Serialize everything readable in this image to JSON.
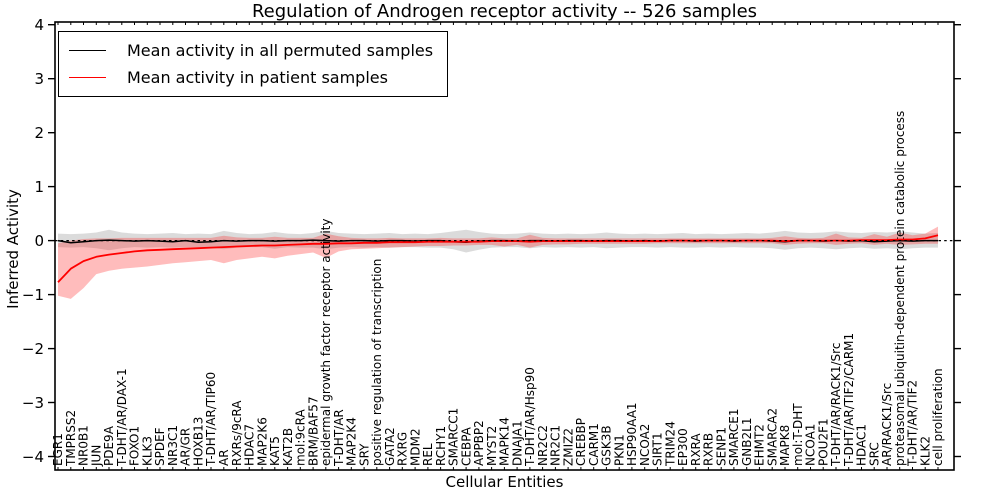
{
  "chart_data": {
    "type": "line",
    "title": "Regulation of Androgen receptor activity -- 526 samples",
    "xlabel": "Cellular Entities",
    "ylabel": "Inferred Activity",
    "ylim": [
      -4,
      4
    ],
    "yticks": [
      -4,
      -3,
      -2,
      -1,
      0,
      1,
      2,
      3,
      4
    ],
    "grid": false,
    "legend_position": "upper left",
    "legend": [
      {
        "label": "Mean activity in all permuted samples",
        "color": "#000000"
      },
      {
        "label": "Mean activity in patient samples",
        "color": "#ff0000"
      }
    ],
    "zero_line": 0,
    "categories": [
      "EGR1",
      "TMPRSS2",
      "NR0B1",
      "JUN",
      "PDE9A",
      "T-DHT/AR/DAX-1",
      "FOXO1",
      "KLK3",
      "SPDEF",
      "NR3C1",
      "AR/GR",
      "HOXB13",
      "T-DHT/AR/TIP60",
      "AR",
      "RXRs/9cRA",
      "HDAC7",
      "MAP2K6",
      "KAT5",
      "KAT2B",
      "mol:9cRA",
      "BRM/BAF57",
      "epidermal growth factor receptor activity",
      "T-DHT/AR",
      "MAP2K4",
      "SRY",
      "positive regulation of transcription",
      "GATA2",
      "RXRG",
      "MDM2",
      "REL",
      "RCHY1",
      "SMARCC1",
      "CEBPA",
      "APPBP2",
      "MYST2",
      "MAPK14",
      "DNAJA1",
      "T-DHT/AR/Hsp90",
      "NR2C2",
      "NR2C1",
      "ZMIZ2",
      "CREBBP",
      "CARM1",
      "GSK3B",
      "PKN1",
      "HSP90AA1",
      "NCOA2",
      "SIRT1",
      "TRIM24",
      "EP300",
      "RXRA",
      "RXRB",
      "SENP1",
      "SMARCE1",
      "GNB2L1",
      "EHMT2",
      "SMARCA2",
      "MAPK8",
      "mol:T-DHT",
      "NCOA1",
      "POU2F1",
      "T-DHT/AR/RACK1/Src",
      "T-DHT/AR/TIF2/CARM1",
      "HDAC1",
      "SRC",
      "AR/RACK1/Src",
      "proteasomal ubiquitin-dependent protein catabolic process",
      "T-DHT/AR/TIF2",
      "KLK2",
      "cell proliferation"
    ],
    "series": [
      {
        "name": "Mean activity in all permuted samples",
        "color": "#000000",
        "values": [
          0.0,
          -0.04,
          -0.02,
          0.0,
          0.01,
          0.0,
          -0.01,
          0.0,
          -0.01,
          -0.02,
          0.0,
          -0.03,
          -0.02,
          0.0,
          -0.01,
          0.0,
          0.0,
          -0.01,
          0.0,
          0.0,
          0.01,
          0.0,
          -0.01,
          0.0,
          0.0,
          -0.01,
          0.0,
          0.0,
          -0.01,
          0.0,
          0.0,
          -0.02,
          -0.03,
          -0.01,
          0.0,
          0.0,
          -0.01,
          0.0,
          0.0,
          -0.01,
          0.0,
          0.0,
          -0.01,
          0.0,
          0.0,
          -0.01,
          0.0,
          -0.01,
          0.0,
          0.0,
          -0.01,
          0.0,
          0.0,
          -0.01,
          0.0,
          0.0,
          -0.01,
          -0.02,
          0.0,
          0.0,
          -0.01,
          0.0,
          -0.01,
          0.0,
          -0.02,
          -0.01,
          0.0,
          -0.01,
          0.0,
          0.0
        ]
      },
      {
        "name": "Mean activity in patient samples",
        "color": "#ff0000",
        "values": [
          -0.77,
          -0.52,
          -0.38,
          -0.3,
          -0.26,
          -0.23,
          -0.2,
          -0.18,
          -0.17,
          -0.16,
          -0.15,
          -0.14,
          -0.13,
          -0.12,
          -0.11,
          -0.1,
          -0.09,
          -0.09,
          -0.08,
          -0.07,
          -0.06,
          -0.06,
          -0.05,
          -0.05,
          -0.04,
          -0.04,
          -0.03,
          -0.03,
          -0.03,
          -0.02,
          -0.02,
          -0.02,
          -0.02,
          -0.02,
          -0.01,
          -0.01,
          -0.01,
          -0.02,
          -0.01,
          -0.01,
          -0.01,
          -0.01,
          -0.01,
          -0.01,
          -0.01,
          -0.01,
          -0.01,
          -0.01,
          0.0,
          0.0,
          0.0,
          0.0,
          0.0,
          0.0,
          0.0,
          0.0,
          0.0,
          -0.01,
          0.0,
          0.0,
          0.0,
          0.0,
          0.0,
          0.01,
          0.01,
          0.01,
          0.02,
          0.02,
          0.04,
          0.1
        ]
      }
    ],
    "bands": [
      {
        "name": "permuted-range",
        "color": "#999999",
        "opacity": 0.35,
        "upper": [
          0.13,
          0.12,
          0.13,
          0.15,
          0.2,
          0.15,
          0.13,
          0.12,
          0.13,
          0.14,
          0.12,
          0.13,
          0.12,
          0.18,
          0.14,
          0.12,
          0.13,
          0.16,
          0.13,
          0.12,
          0.14,
          0.18,
          0.14,
          0.13,
          0.12,
          0.13,
          0.14,
          0.12,
          0.13,
          0.12,
          0.14,
          0.17,
          0.2,
          0.16,
          0.13,
          0.12,
          0.13,
          0.15,
          0.13,
          0.12,
          0.13,
          0.12,
          0.13,
          0.15,
          0.13,
          0.12,
          0.13,
          0.12,
          0.13,
          0.14,
          0.12,
          0.13,
          0.12,
          0.13,
          0.14,
          0.13,
          0.15,
          0.18,
          0.15,
          0.14,
          0.15,
          0.17,
          0.15,
          0.14,
          0.16,
          0.15,
          0.17,
          0.15,
          0.13,
          0.14
        ],
        "lower": [
          -0.12,
          -0.13,
          -0.12,
          -0.14,
          -0.18,
          -0.14,
          -0.12,
          -0.13,
          -0.12,
          -0.13,
          -0.12,
          -0.12,
          -0.13,
          -0.16,
          -0.13,
          -0.12,
          -0.12,
          -0.15,
          -0.12,
          -0.13,
          -0.13,
          -0.16,
          -0.13,
          -0.12,
          -0.13,
          -0.12,
          -0.13,
          -0.12,
          -0.12,
          -0.13,
          -0.13,
          -0.16,
          -0.22,
          -0.17,
          -0.13,
          -0.12,
          -0.12,
          -0.14,
          -0.12,
          -0.13,
          -0.12,
          -0.13,
          -0.12,
          -0.14,
          -0.13,
          -0.12,
          -0.12,
          -0.13,
          -0.12,
          -0.13,
          -0.13,
          -0.12,
          -0.13,
          -0.12,
          -0.13,
          -0.13,
          -0.14,
          -0.17,
          -0.14,
          -0.13,
          -0.14,
          -0.16,
          -0.14,
          -0.13,
          -0.15,
          -0.14,
          -0.16,
          -0.14,
          -0.13,
          -0.13
        ]
      },
      {
        "name": "patient-range",
        "color": "#ff2020",
        "opacity": 0.3,
        "upper": [
          -0.05,
          0.0,
          0.03,
          0.04,
          0.04,
          0.05,
          0.05,
          0.05,
          0.05,
          0.05,
          0.05,
          0.05,
          0.05,
          0.09,
          0.06,
          0.05,
          0.05,
          0.07,
          0.05,
          0.05,
          0.05,
          0.13,
          0.08,
          0.05,
          0.04,
          0.04,
          0.05,
          0.04,
          0.04,
          0.04,
          0.05,
          0.04,
          0.04,
          0.04,
          0.06,
          0.04,
          0.04,
          0.11,
          0.05,
          0.04,
          0.04,
          0.04,
          0.04,
          0.04,
          0.04,
          0.04,
          0.04,
          0.04,
          0.04,
          0.04,
          0.04,
          0.04,
          0.04,
          0.04,
          0.04,
          0.04,
          0.05,
          0.08,
          0.05,
          0.04,
          0.05,
          0.13,
          0.06,
          0.05,
          0.12,
          0.07,
          0.15,
          0.1,
          0.13,
          0.26
        ],
        "lower": [
          -1.02,
          -1.08,
          -0.88,
          -0.62,
          -0.56,
          -0.52,
          -0.5,
          -0.48,
          -0.45,
          -0.42,
          -0.4,
          -0.38,
          -0.36,
          -0.42,
          -0.36,
          -0.33,
          -0.3,
          -0.33,
          -0.28,
          -0.25,
          -0.22,
          -0.32,
          -0.2,
          -0.16,
          -0.15,
          -0.14,
          -0.13,
          -0.12,
          -0.11,
          -0.1,
          -0.1,
          -0.09,
          -0.09,
          -0.08,
          -0.08,
          -0.11,
          -0.08,
          -0.13,
          -0.08,
          -0.07,
          -0.07,
          -0.06,
          -0.06,
          -0.06,
          -0.06,
          -0.06,
          -0.06,
          -0.05,
          -0.05,
          -0.05,
          -0.05,
          -0.05,
          -0.05,
          -0.05,
          -0.05,
          -0.05,
          -0.05,
          -0.08,
          -0.06,
          -0.05,
          -0.05,
          -0.08,
          -0.06,
          -0.05,
          -0.08,
          -0.06,
          -0.08,
          -0.07,
          -0.06,
          -0.06
        ]
      }
    ]
  }
}
